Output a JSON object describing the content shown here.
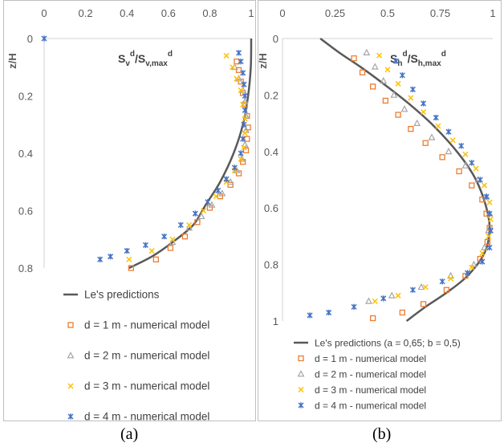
{
  "figures": [
    {
      "caption": "(a)",
      "chart_data": {
        "type": "scatter",
        "title": "",
        "y_axis_title": "z/H",
        "x_axis_annotation": {
          "main": "S",
          "sub1": "v",
          "sup1": "d",
          "sep": "/S",
          "sub2": "v,max",
          "sup2": "d"
        },
        "xlim": [
          0,
          1
        ],
        "ylim": [
          0,
          0.8
        ],
        "y_inverted": true,
        "x_axis_position": "top",
        "x_ticks": [
          "0",
          "0.2",
          "0.4",
          "0.6",
          "0.8",
          "1"
        ],
        "y_ticks": [
          "0",
          "0.2",
          "0.4",
          "0.6",
          "0.8"
        ],
        "grid": false,
        "legend_position": "bottom-left",
        "series": [
          {
            "name": "Le's predictions",
            "kind": "line",
            "color": "#595959",
            "points": [
              [
                1.0,
                0
              ],
              [
                0.998,
                0.1
              ],
              [
                0.985,
                0.2
              ],
              [
                0.96,
                0.3
              ],
              [
                0.915,
                0.4
              ],
              [
                0.85,
                0.5
              ],
              [
                0.78,
                0.58
              ],
              [
                0.72,
                0.65
              ],
              [
                0.62,
                0.71
              ],
              [
                0.52,
                0.76
              ],
              [
                0.41,
                0.8
              ]
            ]
          },
          {
            "name": "d = 1 m - numerical model",
            "kind": "marker",
            "marker": "square",
            "color": "#ED7D31",
            "points": [
              [
                0.93,
                0.08
              ],
              [
                0.94,
                0.11
              ],
              [
                0.95,
                0.15
              ],
              [
                0.96,
                0.19
              ],
              [
                0.97,
                0.23
              ],
              [
                0.98,
                0.27
              ],
              [
                0.985,
                0.31
              ],
              [
                0.98,
                0.35
              ],
              [
                0.975,
                0.39
              ],
              [
                0.96,
                0.43
              ],
              [
                0.94,
                0.47
              ],
              [
                0.9,
                0.51
              ],
              [
                0.85,
                0.55
              ],
              [
                0.8,
                0.59
              ],
              [
                0.74,
                0.64
              ],
              [
                0.68,
                0.69
              ],
              [
                0.61,
                0.73
              ],
              [
                0.54,
                0.77
              ],
              [
                0.42,
                0.8
              ]
            ]
          },
          {
            "name": "d = 2 m - numerical model",
            "kind": "marker",
            "marker": "triangle",
            "color": "#A5A5A5",
            "points": [
              [
                0.92,
                0.1
              ],
              [
                0.94,
                0.14
              ],
              [
                0.96,
                0.18
              ],
              [
                0.97,
                0.22
              ],
              [
                0.975,
                0.27
              ],
              [
                0.975,
                0.32
              ],
              [
                0.97,
                0.37
              ],
              [
                0.955,
                0.42
              ],
              [
                0.93,
                0.46
              ],
              [
                0.9,
                0.5
              ],
              [
                0.86,
                0.54
              ],
              [
                0.81,
                0.58
              ],
              [
                0.76,
                0.62
              ],
              [
                0.7,
                0.66
              ],
              [
                0.62,
                0.71
              ]
            ]
          },
          {
            "name": "d = 3 m - numerical model",
            "kind": "marker",
            "marker": "x",
            "color": "#FFC000",
            "points": [
              [
                0.88,
                0.06
              ],
              [
                0.91,
                0.1
              ],
              [
                0.93,
                0.14
              ],
              [
                0.95,
                0.18
              ],
              [
                0.96,
                0.23
              ],
              [
                0.97,
                0.28
              ],
              [
                0.97,
                0.33
              ],
              [
                0.965,
                0.38
              ],
              [
                0.95,
                0.42
              ],
              [
                0.92,
                0.46
              ],
              [
                0.88,
                0.5
              ],
              [
                0.83,
                0.55
              ],
              [
                0.77,
                0.6
              ],
              [
                0.7,
                0.65
              ],
              [
                0.62,
                0.7
              ],
              [
                0.52,
                0.74
              ],
              [
                0.41,
                0.77
              ]
            ]
          },
          {
            "name": "d = 4 m - numerical model",
            "kind": "marker",
            "marker": "star",
            "color": "#4472C4",
            "points": [
              [
                0.0,
                0.0
              ],
              [
                0.94,
                0.05
              ],
              [
                0.95,
                0.08
              ],
              [
                0.96,
                0.12
              ],
              [
                0.965,
                0.16
              ],
              [
                0.97,
                0.2
              ],
              [
                0.97,
                0.25
              ],
              [
                0.965,
                0.3
              ],
              [
                0.96,
                0.35
              ],
              [
                0.95,
                0.4
              ],
              [
                0.92,
                0.45
              ],
              [
                0.88,
                0.49
              ],
              [
                0.84,
                0.53
              ],
              [
                0.79,
                0.57
              ],
              [
                0.73,
                0.61
              ],
              [
                0.66,
                0.65
              ],
              [
                0.58,
                0.69
              ],
              [
                0.49,
                0.72
              ],
              [
                0.4,
                0.74
              ],
              [
                0.32,
                0.76
              ],
              [
                0.27,
                0.77
              ]
            ]
          }
        ]
      }
    },
    {
      "caption": "(b)",
      "chart_data": {
        "type": "scatter",
        "title": "",
        "y_axis_title": "z/H",
        "x_axis_annotation": {
          "main": "S",
          "sub1": "h",
          "sup1": "d",
          "sep": "/S",
          "sub2": "h,max",
          "sup2": "d"
        },
        "xlim": [
          0,
          1
        ],
        "ylim": [
          0,
          1
        ],
        "y_inverted": true,
        "x_axis_position": "top",
        "x_ticks": [
          "0",
          "0.25",
          "0.5",
          "0.75",
          "1"
        ],
        "y_ticks": [
          "0",
          "0.2",
          "0.4",
          "0.6",
          "0.8",
          "1"
        ],
        "grid": false,
        "legend_position": "bottom",
        "series": [
          {
            "name": "Le's predictions (a = 0,65; b = 0,5)",
            "kind": "line",
            "color": "#595959",
            "points": [
              [
                0.18,
                0
              ],
              [
                0.27,
                0.05
              ],
              [
                0.37,
                0.1
              ],
              [
                0.48,
                0.16
              ],
              [
                0.6,
                0.23
              ],
              [
                0.72,
                0.31
              ],
              [
                0.84,
                0.41
              ],
              [
                0.92,
                0.5
              ],
              [
                0.97,
                0.6
              ],
              [
                0.985,
                0.68
              ],
              [
                0.96,
                0.76
              ],
              [
                0.88,
                0.84
              ],
              [
                0.78,
                0.9
              ],
              [
                0.68,
                0.95
              ],
              [
                0.59,
                1.0
              ]
            ]
          },
          {
            "name": "d = 1 m - numerical model",
            "kind": "marker",
            "marker": "square",
            "color": "#ED7D31",
            "points": [
              [
                0.34,
                0.07
              ],
              [
                0.38,
                0.12
              ],
              [
                0.43,
                0.17
              ],
              [
                0.49,
                0.22
              ],
              [
                0.55,
                0.27
              ],
              [
                0.61,
                0.32
              ],
              [
                0.68,
                0.37
              ],
              [
                0.76,
                0.42
              ],
              [
                0.84,
                0.47
              ],
              [
                0.9,
                0.52
              ],
              [
                0.95,
                0.57
              ],
              [
                0.97,
                0.62
              ],
              [
                0.985,
                0.67
              ],
              [
                0.975,
                0.72
              ],
              [
                0.94,
                0.78
              ],
              [
                0.87,
                0.84
              ],
              [
                0.78,
                0.89
              ],
              [
                0.67,
                0.94
              ],
              [
                0.57,
                0.97
              ],
              [
                0.43,
                0.99
              ]
            ]
          },
          {
            "name": "d = 2 m - numerical model",
            "kind": "marker",
            "marker": "triangle",
            "color": "#A5A5A5",
            "points": [
              [
                0.4,
                0.05
              ],
              [
                0.44,
                0.1
              ],
              [
                0.48,
                0.15
              ],
              [
                0.53,
                0.2
              ],
              [
                0.58,
                0.25
              ],
              [
                0.64,
                0.3
              ],
              [
                0.71,
                0.35
              ],
              [
                0.79,
                0.4
              ],
              [
                0.87,
                0.45
              ],
              [
                0.93,
                0.5
              ],
              [
                0.97,
                0.56
              ],
              [
                0.985,
                0.62
              ],
              [
                0.98,
                0.68
              ],
              [
                0.96,
                0.74
              ],
              [
                0.91,
                0.8
              ],
              [
                0.8,
                0.84
              ],
              [
                0.66,
                0.88
              ],
              [
                0.52,
                0.91
              ],
              [
                0.41,
                0.93
              ]
            ]
          },
          {
            "name": "d = 3 m - numerical model",
            "kind": "marker",
            "marker": "x",
            "color": "#FFC000",
            "points": [
              [
                0.46,
                0.06
              ],
              [
                0.5,
                0.11
              ],
              [
                0.55,
                0.16
              ],
              [
                0.61,
                0.21
              ],
              [
                0.67,
                0.26
              ],
              [
                0.74,
                0.31
              ],
              [
                0.81,
                0.36
              ],
              [
                0.87,
                0.41
              ],
              [
                0.92,
                0.46
              ],
              [
                0.96,
                0.52
              ],
              [
                0.985,
                0.58
              ],
              [
                0.99,
                0.64
              ],
              [
                0.98,
                0.7
              ],
              [
                0.95,
                0.76
              ],
              [
                0.9,
                0.81
              ],
              [
                0.8,
                0.85
              ],
              [
                0.68,
                0.88
              ],
              [
                0.55,
                0.91
              ],
              [
                0.44,
                0.93
              ]
            ]
          },
          {
            "name": "d = 4 m - numerical model",
            "kind": "marker",
            "marker": "star",
            "color": "#4472C4",
            "points": [
              [
                0.54,
                0.08
              ],
              [
                0.57,
                0.13
              ],
              [
                0.62,
                0.18
              ],
              [
                0.67,
                0.23
              ],
              [
                0.73,
                0.28
              ],
              [
                0.79,
                0.33
              ],
              [
                0.85,
                0.38
              ],
              [
                0.9,
                0.44
              ],
              [
                0.94,
                0.5
              ],
              [
                0.97,
                0.56
              ],
              [
                0.985,
                0.62
              ],
              [
                0.99,
                0.68
              ],
              [
                0.985,
                0.74
              ],
              [
                0.95,
                0.79
              ],
              [
                0.88,
                0.83
              ],
              [
                0.76,
                0.86
              ],
              [
                0.62,
                0.89
              ],
              [
                0.48,
                0.92
              ],
              [
                0.34,
                0.95
              ],
              [
                0.22,
                0.97
              ],
              [
                0.13,
                0.98
              ]
            ]
          }
        ]
      }
    }
  ]
}
